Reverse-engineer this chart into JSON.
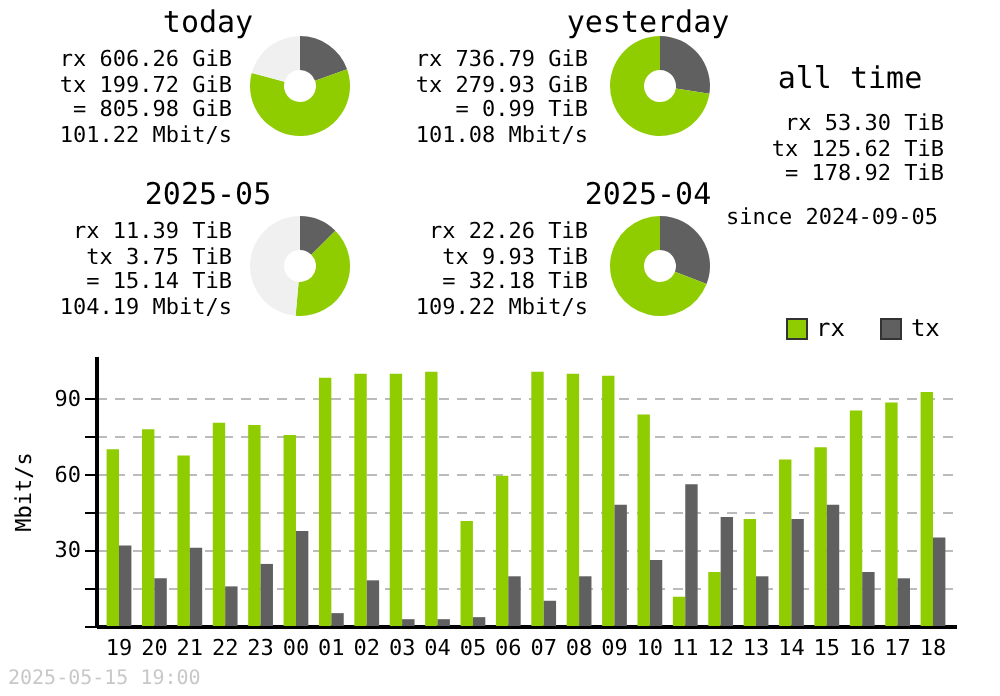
{
  "chart_data": [
    {
      "type": "donut",
      "title": "today",
      "values": [
        19.6,
        59.6,
        20.8
      ],
      "colors": [
        "#606060",
        "#8fcc00",
        "#f0f0f0"
      ],
      "annotations": [
        "rx 606.26 GiB",
        "tx 199.72 GiB",
        "= 805.98 GiB",
        "101.22 Mbit/s"
      ]
    },
    {
      "type": "donut",
      "title": "yesterday",
      "values": [
        27.5,
        72.5,
        0
      ],
      "colors": [
        "#606060",
        "#8fcc00",
        "#f0f0f0"
      ],
      "annotations": [
        "rx 736.79 GiB",
        "tx 279.93 GiB",
        "= 0.99 TiB",
        "101.08 Mbit/s"
      ]
    },
    {
      "type": "donut",
      "title": "2025-05",
      "values": [
        12.5,
        38.9,
        48.6
      ],
      "colors": [
        "#606060",
        "#8fcc00",
        "#f0f0f0"
      ],
      "annotations": [
        "rx 11.39 TiB",
        "tx 3.75 TiB",
        "= 15.14 TiB",
        "104.19 Mbit/s"
      ]
    },
    {
      "type": "donut",
      "title": "2025-04",
      "values": [
        30.9,
        69.1,
        0
      ],
      "colors": [
        "#606060",
        "#8fcc00",
        "#f0f0f0"
      ],
      "annotations": [
        "rx 22.26 TiB",
        "tx 9.93 TiB",
        "= 32.18 TiB",
        "109.22 Mbit/s"
      ]
    },
    {
      "type": "other",
      "title": "all time",
      "annotations": [
        "rx 53.30 TiB",
        "tx 125.62 TiB",
        "= 178.92 TiB",
        "since 2024-09-05"
      ]
    },
    {
      "type": "bar",
      "ylabel": "Mbit/s",
      "categories": [
        "19",
        "20",
        "21",
        "22",
        "23",
        "00",
        "01",
        "02",
        "03",
        "04",
        "05",
        "06",
        "07",
        "08",
        "09",
        "10",
        "11",
        "12",
        "13",
        "14",
        "15",
        "16",
        "17",
        "18"
      ],
      "series": [
        {
          "name": "rx",
          "color": "#8fcc00",
          "values": [
            70,
            78,
            67.6,
            80.5,
            79.7,
            75.7,
            98.4,
            100,
            100,
            100.8,
            41.6,
            59.5,
            100.8,
            100,
            99.2,
            83.8,
            11.6,
            21.4,
            42.4,
            66,
            70.8,
            85.4,
            88.6,
            92.7
          ]
        },
        {
          "name": "tx",
          "color": "#606060",
          "values": [
            31.9,
            18.9,
            31,
            15.7,
            24.6,
            37.6,
            5.1,
            18.1,
            2.7,
            2.7,
            3.5,
            19.7,
            10,
            19.7,
            48.1,
            26.2,
            56.2,
            43.2,
            19.7,
            42.4,
            48.1,
            21.4,
            18.9,
            35.1
          ]
        }
      ],
      "ylim": [
        0,
        107
      ],
      "yticks": [
        {
          "value": 0,
          "label": null
        },
        {
          "value": 15,
          "label": null
        },
        30,
        {
          "value": 45,
          "label": null
        },
        60,
        {
          "value": 75,
          "label": null
        },
        90
      ],
      "grid": "y",
      "legend": "top right",
      "annotations": [
        "2025-05-15 19:00"
      ]
    }
  ]
}
